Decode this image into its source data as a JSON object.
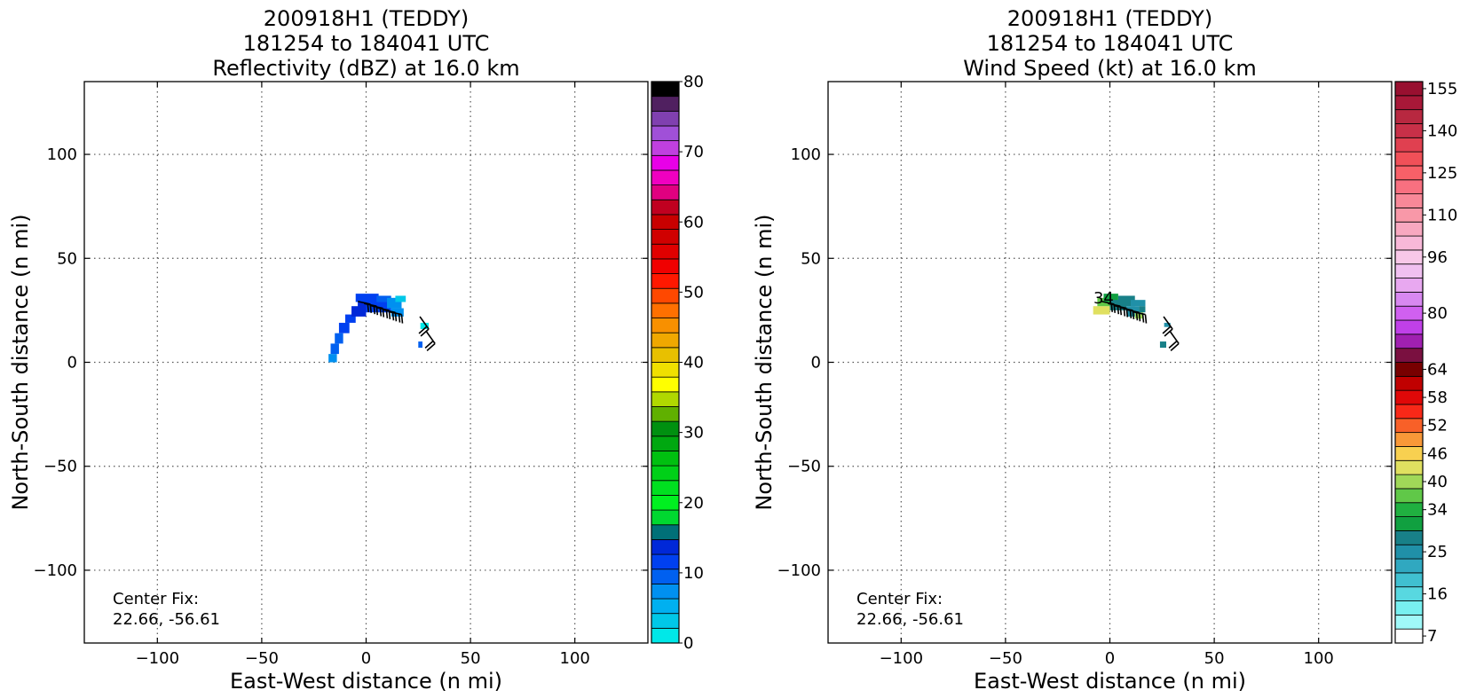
{
  "chart_data": [
    {
      "type": "heatmap",
      "title_lines": [
        "200918H1 (TEDDY)",
        "181254 to 184041 UTC",
        "Reflectivity (dBZ) at 16.0 km"
      ],
      "xlabel": "East-West distance (n mi)",
      "ylabel": "North-South distance (n mi)",
      "xlim": [
        -135,
        135
      ],
      "ylim": [
        -135,
        135
      ],
      "xticks": [
        -100,
        -50,
        0,
        50,
        100
      ],
      "yticks": [
        -100,
        -50,
        0,
        50,
        100
      ],
      "xtick_labels": [
        "−100",
        "−50",
        "0",
        "50",
        "100"
      ],
      "ytick_labels": [
        "−100",
        "−50",
        "0",
        "50",
        "100"
      ],
      "grid": true,
      "annotation_lines": [
        "Center Fix:",
        "22.66, -56.61"
      ],
      "colorbar": {
        "min": 0,
        "max": 80,
        "tick_values": [
          0,
          10,
          20,
          30,
          40,
          50,
          60,
          70,
          80
        ],
        "tick_labels": [
          "0",
          "10",
          "20",
          "30",
          "40",
          "50",
          "60",
          "70",
          "80"
        ],
        "colors": [
          "#00e8e8",
          "#00c8e8",
          "#00b0f0",
          "#0090f0",
          "#0060f0",
          "#0040f0",
          "#0028d8",
          "#007078",
          "#00d830",
          "#00f020",
          "#00e020",
          "#00d018",
          "#00c010",
          "#00a810",
          "#009010",
          "#60b000",
          "#b0d800",
          "#ffff00",
          "#f0e000",
          "#e8c000",
          "#f0a800",
          "#f89000",
          "#ff7000",
          "#ff4800",
          "#ff1800",
          "#f00000",
          "#e00000",
          "#d00000",
          "#c80000",
          "#c00020",
          "#e00080",
          "#f000c0",
          "#e800e8",
          "#c040e0",
          "#a050d8",
          "#8040b0",
          "#502060",
          "#000000"
        ]
      },
      "field": [
        {
          "x0": -18,
          "x1": -14,
          "y0": 0,
          "y1": 4,
          "v": 8
        },
        {
          "x0": -17,
          "x1": -13,
          "y0": 4,
          "y1": 9,
          "v": 9
        },
        {
          "x0": -15,
          "x1": -11,
          "y0": 9,
          "y1": 14,
          "v": 10
        },
        {
          "x0": -13,
          "x1": -8,
          "y0": 14,
          "y1": 19,
          "v": 11
        },
        {
          "x0": -10,
          "x1": -5,
          "y0": 19,
          "y1": 23,
          "v": 12
        },
        {
          "x0": -7,
          "x1": 0,
          "y0": 22,
          "y1": 27,
          "v": 13
        },
        {
          "x0": -4,
          "x1": 5,
          "y0": 25,
          "y1": 30,
          "v": 13
        },
        {
          "x0": -5,
          "x1": 6,
          "y0": 29,
          "y1": 33,
          "v": 11
        },
        {
          "x0": 0,
          "x1": 12,
          "y0": 24,
          "y1": 29,
          "v": 12
        },
        {
          "x0": 5,
          "x1": 12,
          "y0": 29,
          "y1": 32,
          "v": 10
        },
        {
          "x0": 10,
          "x1": 17,
          "y0": 26,
          "y1": 31,
          "v": 7
        },
        {
          "x0": 12,
          "x1": 18,
          "y0": 22,
          "y1": 26,
          "v": 8
        },
        {
          "x0": 14,
          "x1": 19,
          "y0": 29,
          "y1": 32,
          "v": 3
        },
        {
          "x0": 26,
          "x1": 30,
          "y0": 16,
          "y1": 19,
          "v": 2
        },
        {
          "x0": 25,
          "x1": 27,
          "y0": 7,
          "y1": 10,
          "v": 10
        }
      ],
      "wind_barbs": [
        {
          "x": 2,
          "y": 28
        },
        {
          "x": 5,
          "y": 27
        },
        {
          "x": 8,
          "y": 26
        },
        {
          "x": 11,
          "y": 25
        },
        {
          "x": 14,
          "y": 24
        },
        {
          "x": 17,
          "y": 23
        },
        {
          "x": 30,
          "y": 16
        },
        {
          "x": 33,
          "y": 9
        }
      ]
    },
    {
      "type": "heatmap",
      "title_lines": [
        "200918H1 (TEDDY)",
        "181254 to 184041 UTC",
        "Wind Speed (kt) at 16.0 km"
      ],
      "xlabel": "East-West distance (n mi)",
      "ylabel": "North-South distance (n mi)",
      "xlim": [
        -135,
        135
      ],
      "ylim": [
        -135,
        135
      ],
      "xticks": [
        -100,
        -50,
        0,
        50,
        100
      ],
      "yticks": [
        -100,
        -50,
        0,
        50,
        100
      ],
      "xtick_labels": [
        "−100",
        "−50",
        "0",
        "50",
        "100"
      ],
      "ytick_labels": [
        "−100",
        "−50",
        "0",
        "50",
        "100"
      ],
      "grid": true,
      "annotation_lines": [
        "Center Fix:",
        "22.66, -56.61"
      ],
      "contour_labels": [
        {
          "text": "34",
          "x": -3,
          "y": 31
        }
      ],
      "colorbar": {
        "levels": [
          7,
          10,
          13,
          16,
          19,
          22,
          25,
          28,
          31,
          34,
          37,
          40,
          43,
          46,
          49,
          52,
          55,
          58,
          61,
          64,
          68,
          72,
          76,
          80,
          84,
          88,
          92,
          96,
          100,
          105,
          110,
          115,
          120,
          125,
          130,
          135,
          140,
          145,
          150,
          155,
          160
        ],
        "tick_values": [
          7,
          16,
          25,
          34,
          40,
          46,
          52,
          58,
          64,
          80,
          96,
          110,
          125,
          140,
          155
        ],
        "tick_labels": [
          "7",
          "16",
          "25",
          "34",
          "40",
          "46",
          "52",
          "58",
          "64",
          "80",
          "96",
          "110",
          "125",
          "140",
          "155"
        ],
        "colors": [
          "#ffffff",
          "#a0f8f8",
          "#78f0f0",
          "#58d8e0",
          "#40c0d0",
          "#30a8c0",
          "#2090a8",
          "#188088",
          "#10a040",
          "#20b040",
          "#60c848",
          "#a0d858",
          "#e0e060",
          "#f8d050",
          "#f89838",
          "#f86028",
          "#f82818",
          "#e00808",
          "#c00000",
          "#780000",
          "#7a1040",
          "#a020b0",
          "#c040e8",
          "#d060f0",
          "#d888f0",
          "#e8a8f0",
          "#f0c0f0",
          "#f8c8e8",
          "#f8b8d8",
          "#f8a8c0",
          "#f898a8",
          "#f88898",
          "#f87080",
          "#f86068",
          "#f05058",
          "#e04050",
          "#c83048",
          "#b82840",
          "#a81838",
          "#981030"
        ]
      },
      "field": [
        {
          "x0": -8,
          "x1": 0,
          "y0": 23,
          "y1": 27,
          "v": 45
        },
        {
          "x0": -6,
          "x1": 0,
          "y0": 27,
          "y1": 31,
          "v": 38
        },
        {
          "x0": -3,
          "x1": 4,
          "y0": 29,
          "y1": 33,
          "v": 33
        },
        {
          "x0": 0,
          "x1": 8,
          "y0": 25,
          "y1": 30,
          "v": 28
        },
        {
          "x0": 4,
          "x1": 12,
          "y0": 27,
          "y1": 32,
          "v": 30
        },
        {
          "x0": 8,
          "x1": 14,
          "y0": 22,
          "y1": 27,
          "v": 27
        },
        {
          "x0": 10,
          "x1": 17,
          "y0": 27,
          "y1": 30,
          "v": 26
        },
        {
          "x0": 12,
          "x1": 16,
          "y0": 21,
          "y1": 24,
          "v": 41
        },
        {
          "x0": 14,
          "x1": 17,
          "y0": 24,
          "y1": 27,
          "v": 28
        },
        {
          "x0": 26,
          "x1": 29,
          "y0": 17,
          "y1": 19,
          "v": 25
        },
        {
          "x0": 24,
          "x1": 27,
          "y0": 7,
          "y1": 10,
          "v": 28
        }
      ],
      "wind_barbs": [
        {
          "x": 2,
          "y": 28
        },
        {
          "x": 5,
          "y": 27
        },
        {
          "x": 8,
          "y": 26
        },
        {
          "x": 11,
          "y": 25
        },
        {
          "x": 14,
          "y": 24
        },
        {
          "x": 17,
          "y": 23
        },
        {
          "x": 30,
          "y": 16
        },
        {
          "x": 33,
          "y": 9
        }
      ]
    }
  ]
}
